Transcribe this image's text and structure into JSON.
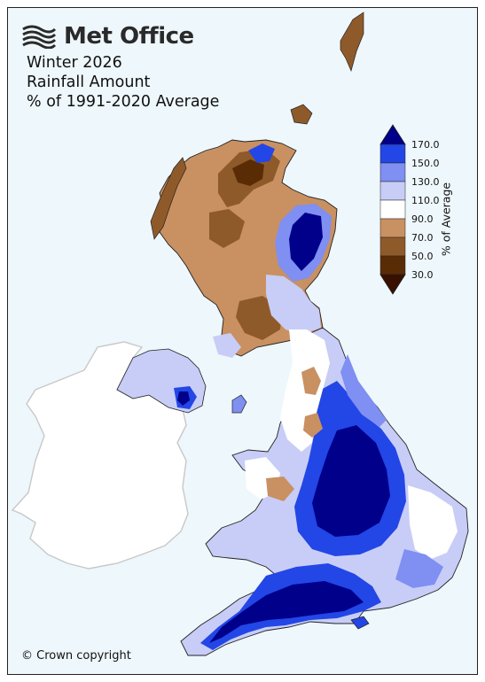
{
  "brand": {
    "name": "Met Office"
  },
  "title": {
    "line1": "Winter 2026",
    "line2": "Rainfall Amount",
    "line3": "% of 1991-2020 Average"
  },
  "colorbar": {
    "label": "% of Average",
    "ticks": [
      "170.0",
      "150.0",
      "130.0",
      "110.0",
      "90.0",
      "70.0",
      "50.0",
      "30.0"
    ],
    "colors": [
      "#00008b",
      "#2346e6",
      "#7f8ff2",
      "#c8cdf7",
      "#ffffff",
      "#c99062",
      "#8f5a2a",
      "#5a2c05",
      "#380f00"
    ]
  },
  "copyright": "© Crown copyright"
}
